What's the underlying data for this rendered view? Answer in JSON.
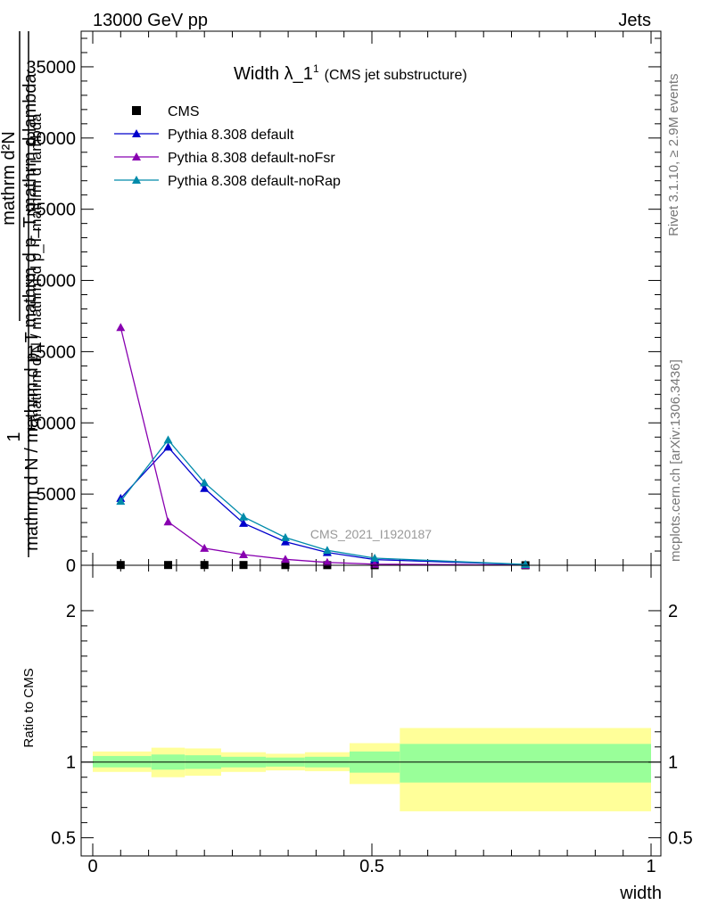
{
  "header": {
    "left_label": "13000 GeV pp",
    "right_label": "Jets"
  },
  "side_labels": {
    "rivet": "Rivet 3.1.10, ≥ 2.9M events",
    "mcplots": "mcplots.cern.ch [arXiv:1306.3436]"
  },
  "chart_data": [
    {
      "type": "line",
      "title": "Width λ_1",
      "title_superscript": "1",
      "subtitle": "(CMS jet substructure)",
      "watermark": "CMS_2021_I1920187",
      "ylabel_numerator": "1",
      "ylabel_fraction_num": "mathrm d²N",
      "ylabel_fraction_den": "mathrm d p_T mathrm d lambda",
      "ylabel_denominator": "mathrm d N / mathrm d p_T",
      "ylabel_overlay": "mathrm d N / mathrm d p_T mathrm d lambda",
      "xlim": [
        0,
        1
      ],
      "ylim": [
        0,
        37500
      ],
      "yticks": [
        {
          "value": 0,
          "label": "0"
        },
        {
          "value": 5000,
          "label": "5000"
        },
        {
          "value": 10000,
          "label": "10000"
        },
        {
          "value": 15000,
          "label": "15000"
        },
        {
          "value": 20000,
          "label": "20000"
        },
        {
          "value": 25000,
          "label": "25000"
        },
        {
          "value": 30000,
          "label": "30000"
        },
        {
          "value": 35000,
          "label": "35000"
        }
      ],
      "legend_position": "top-left",
      "series": [
        {
          "name": "CMS",
          "marker": "square",
          "color": "#000000",
          "x": [
            0.05,
            0.135,
            0.2,
            0.27,
            0.345,
            0.42,
            0.505,
            0.775
          ],
          "y": [
            20,
            20,
            20,
            20,
            15,
            10,
            5,
            2
          ]
        },
        {
          "name": "Pythia 8.308 default",
          "marker": "triangle",
          "color": "#0000cc",
          "x": [
            0.05,
            0.135,
            0.2,
            0.27,
            0.345,
            0.42,
            0.505,
            0.775
          ],
          "y": [
            4700,
            8300,
            5400,
            2950,
            1650,
            900,
            400,
            50
          ]
        },
        {
          "name": "Pythia 8.308 default-noFsr",
          "marker": "triangle",
          "color": "#8800b0",
          "x": [
            0.05,
            0.135,
            0.2,
            0.27,
            0.345,
            0.42,
            0.505,
            0.775
          ],
          "y": [
            16700,
            3050,
            1200,
            750,
            420,
            200,
            80,
            10
          ]
        },
        {
          "name": "Pythia 8.308 default-noRap",
          "marker": "triangle",
          "color": "#008baa",
          "x": [
            0.05,
            0.135,
            0.2,
            0.27,
            0.345,
            0.42,
            0.505,
            0.775
          ],
          "y": [
            4500,
            8800,
            5800,
            3400,
            1950,
            1050,
            500,
            60
          ]
        }
      ]
    },
    {
      "type": "area",
      "ylabel": "Ratio to CMS",
      "xlabel": "width",
      "xlim": [
        0,
        1
      ],
      "ylim": [
        0.38,
        2.3
      ],
      "xticks": [
        {
          "value": 0,
          "label": "0"
        },
        {
          "value": 0.5,
          "label": "0.5"
        },
        {
          "value": 1,
          "label": "1"
        }
      ],
      "yticks": [
        {
          "value": 0.5,
          "label": "0.5"
        },
        {
          "value": 1,
          "label": "1"
        },
        {
          "value": 2,
          "label": "2"
        }
      ],
      "bins": [
        {
          "lo": 0.0,
          "hi": 0.105,
          "inner": [
            0.965,
            1.04
          ],
          "outer": [
            0.935,
            1.07
          ]
        },
        {
          "lo": 0.105,
          "hi": 0.165,
          "inner": [
            0.95,
            1.05
          ],
          "outer": [
            0.9,
            1.095
          ]
        },
        {
          "lo": 0.165,
          "hi": 0.23,
          "inner": [
            0.955,
            1.045
          ],
          "outer": [
            0.91,
            1.09
          ]
        },
        {
          "lo": 0.23,
          "hi": 0.31,
          "inner": [
            0.965,
            1.035
          ],
          "outer": [
            0.935,
            1.065
          ]
        },
        {
          "lo": 0.31,
          "hi": 0.38,
          "inner": [
            0.97,
            1.03
          ],
          "outer": [
            0.945,
            1.055
          ]
        },
        {
          "lo": 0.38,
          "hi": 0.46,
          "inner": [
            0.965,
            1.035
          ],
          "outer": [
            0.94,
            1.065
          ]
        },
        {
          "lo": 0.46,
          "hi": 0.55,
          "inner": [
            0.93,
            1.07
          ],
          "outer": [
            0.855,
            1.125
          ]
        },
        {
          "lo": 0.55,
          "hi": 1.0,
          "inner": [
            0.865,
            1.12
          ],
          "outer": [
            0.675,
            1.225
          ]
        }
      ],
      "inner_color": "#99ff99",
      "outer_color": "#ffff99",
      "reference_line": 1
    }
  ]
}
